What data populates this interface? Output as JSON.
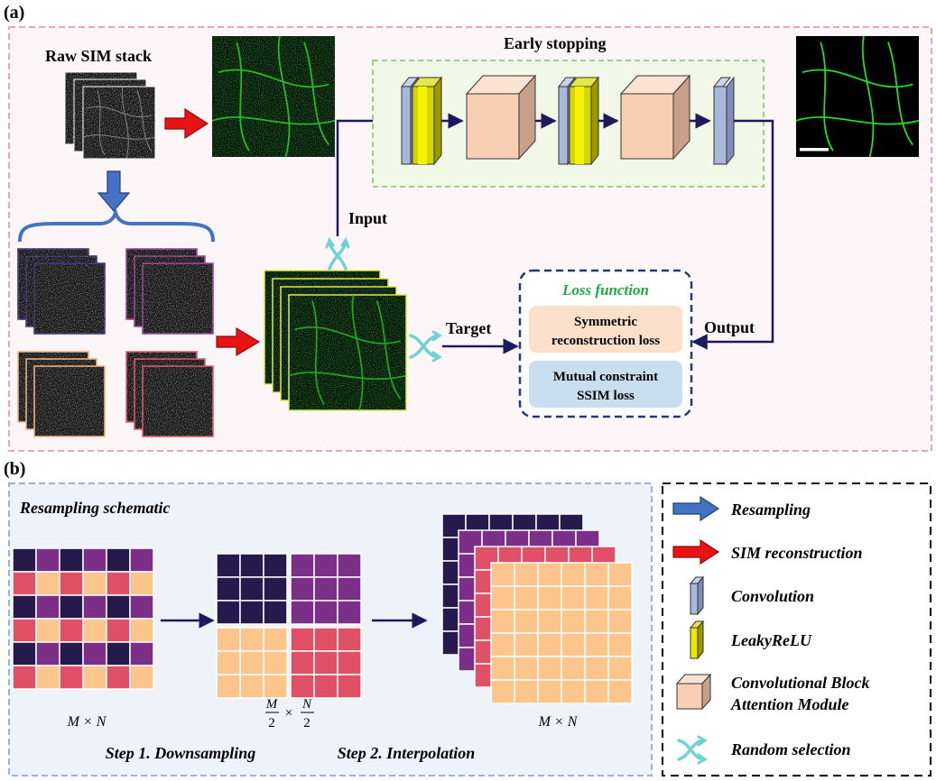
{
  "panel_a": {
    "label": "(a)",
    "raw_stack_title": "Raw SIM stack",
    "early_stopping": "Early stopping",
    "input_label": "Input",
    "target_label": "Target",
    "output_label": "Output",
    "loss": {
      "title": "Loss function",
      "item1_line1": "Symmetric",
      "item1_line2": "reconstruction loss",
      "item2_line1": "Mutual constraint",
      "item2_line2": "SSIM loss"
    }
  },
  "panel_b": {
    "label": "(b)",
    "schematic_title": "Resampling schematic",
    "size_full_1": "M × N",
    "size_half_m": "M",
    "size_half_n": "N",
    "size_half_den": "2",
    "size_half_times": "×",
    "size_full_2": "M × N",
    "step1": "Step 1. Downsampling",
    "step2": "Step 2. Interpolation"
  },
  "legend": {
    "resampling": "Resampling",
    "sim_reconstruction": "SIM reconstruction",
    "convolution": "Convolution",
    "leakyrelu": "LeakyReLU",
    "cbam_line1": "Convolutional Block",
    "cbam_line2": "Attention Module",
    "random_selection": "Random selection"
  },
  "colors": {
    "dark_navy": "#251a4b",
    "purple": "#7b2f86",
    "pink": "#e05067",
    "peach": "#fbc58b",
    "arrow_blue": "#4472c4",
    "arrow_red": "#e81414",
    "conv_blue": "#a9b7db",
    "relu_yellow": "#d5d500",
    "cbam_peach": "#f9cfb3",
    "loss_green": "#1fae3e",
    "random_teal": "#6fd2d3",
    "flow_navy": "#1c1a5c"
  }
}
